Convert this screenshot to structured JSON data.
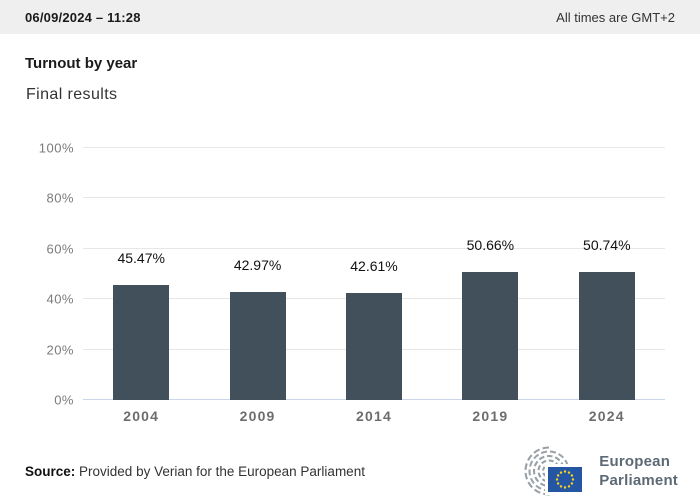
{
  "topbar": {
    "datetime": "06/09/2024 – 11:28",
    "timezone_note": "All times are GMT+2"
  },
  "header": {
    "title": "Turnout by year",
    "subtitle": "Final results"
  },
  "chart_data": {
    "type": "bar",
    "title": "Turnout by year",
    "subtitle": "Final results",
    "categories": [
      "2004",
      "2009",
      "2014",
      "2019",
      "2024"
    ],
    "values": [
      45.47,
      42.97,
      42.61,
      50.66,
      50.74
    ],
    "value_labels": [
      "45.47%",
      "42.97%",
      "42.61%",
      "50.66%",
      "50.74%"
    ],
    "xlabel": "",
    "ylabel": "",
    "ylim": [
      0,
      100
    ],
    "y_ticks": [
      "0%",
      "20%",
      "40%",
      "60%",
      "80%",
      "100%"
    ],
    "grid": true,
    "legend": "none",
    "bar_color": "#42505c",
    "gridline_color": "#e7e7e7",
    "axis_line_color": "#ccd6eb"
  },
  "footer": {
    "source_label": "Source:",
    "source_text": "Provided by Verian for the European Parliament",
    "logo_line1": "European",
    "logo_line2": "Parliament"
  },
  "colors": {
    "topbar_bg": "#efefef",
    "bar": "#42505c",
    "eu_flag_blue": "#2456a4",
    "eu_star_yellow": "#ffd617",
    "logo_gray": "#98a0a6"
  }
}
